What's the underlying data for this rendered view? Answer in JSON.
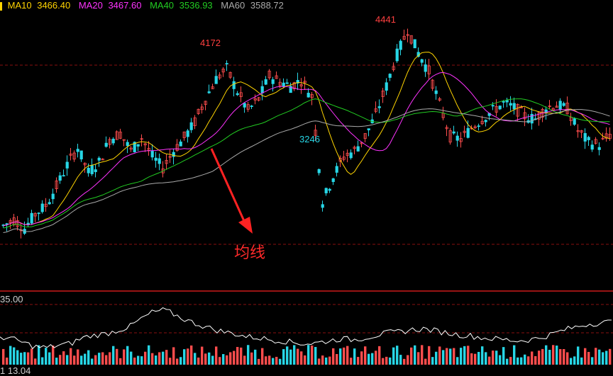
{
  "legend": {
    "ma10": {
      "label": "MA10",
      "value": "3466.40",
      "color": "#ffd400"
    },
    "ma20": {
      "label": "MA20",
      "value": "3467.60",
      "color": "#ff33ff"
    },
    "ma40": {
      "label": "MA40",
      "value": "3536.93",
      "color": "#22cc22"
    },
    "ma60": {
      "label": "MA60",
      "value": "3588.72",
      "color": "#aaaaaa"
    }
  },
  "peaks": {
    "high1": "4172",
    "high2": "4441",
    "low1": "3246"
  },
  "annotation": {
    "text": "均线"
  },
  "volume": {
    "scale_label": "35.00"
  },
  "bottom": {
    "label": "1 13.04"
  },
  "colors": {
    "up": "#ff4d4d",
    "down": "#27d6e6",
    "grid": "#8a1010",
    "arrow": "#ff2222"
  },
  "chart_data": {
    "type": "candlestick",
    "price_axis": {
      "min": 2950,
      "max": 4550
    },
    "moving_averages": [
      "MA10",
      "MA20",
      "MA40",
      "MA60"
    ],
    "key_levels": [
      4172,
      4441,
      3246
    ],
    "price_path": [
      3080,
      3120,
      3060,
      3160,
      3220,
      3350,
      3500,
      3620,
      3450,
      3520,
      3680,
      3720,
      3600,
      3690,
      3560,
      3480,
      3600,
      3690,
      3800,
      3960,
      4100,
      4172,
      4010,
      3880,
      3960,
      4120,
      4080,
      4050,
      4090,
      3980,
      3246,
      3420,
      3560,
      3600,
      3700,
      3850,
      4050,
      4270,
      4441,
      4280,
      4150,
      3920,
      3700,
      3680,
      3760,
      3820,
      3880,
      3930,
      3900,
      3840,
      3820,
      3900,
      3920,
      3890,
      3740,
      3660,
      3640,
      3710
    ],
    "volume_path": [
      0.42,
      0.38,
      0.3,
      0.22,
      0.2,
      0.25,
      0.28,
      0.4,
      0.45,
      0.48,
      0.55,
      0.62,
      0.78,
      0.92,
      0.96,
      0.85,
      0.74,
      0.66,
      0.58,
      0.52,
      0.48,
      0.42,
      0.4,
      0.36,
      0.34,
      0.3,
      0.28,
      0.3,
      0.34,
      0.38,
      0.36,
      0.4,
      0.45,
      0.5,
      0.52,
      0.56,
      0.58,
      0.54,
      0.5,
      0.46,
      0.44,
      0.4,
      0.38,
      0.36,
      0.34,
      0.36,
      0.4,
      0.48,
      0.56,
      0.62,
      0.68,
      0.7,
      0.72
    ]
  }
}
